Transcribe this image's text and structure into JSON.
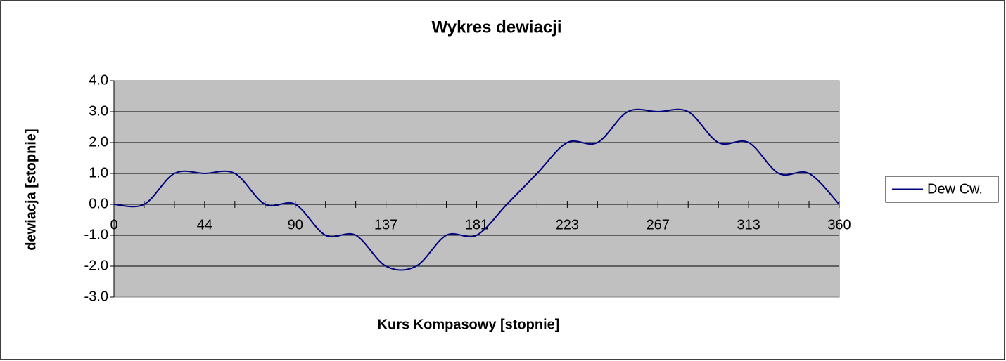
{
  "chart_data": {
    "type": "line",
    "title": "Wykres dewiacji",
    "x_label": "Kurs Kompasowy   [stopnie]",
    "y_label": "dewiacja [stopnie]",
    "categories": [
      0,
      null,
      null,
      44,
      null,
      null,
      90,
      null,
      null,
      137,
      null,
      null,
      181,
      null,
      null,
      223,
      null,
      null,
      267,
      null,
      null,
      313,
      null,
      null,
      360
    ],
    "series": [
      {
        "name": "Dew Cw.",
        "color": "#000080",
        "values": [
          0,
          0,
          1,
          1,
          1,
          0,
          0,
          -1,
          -1,
          -2,
          -2,
          -1,
          -1,
          0,
          1,
          2,
          2,
          3,
          3,
          3,
          2,
          2,
          1,
          1,
          0
        ]
      }
    ],
    "ylim": [
      -3,
      4
    ],
    "yticks": [
      {
        "value": -3,
        "label": "-3.0"
      },
      {
        "value": -2,
        "label": "-2.0"
      },
      {
        "value": -1,
        "label": "-1.0"
      },
      {
        "value": 0,
        "label": "0.0"
      },
      {
        "value": 1,
        "label": "1.0"
      },
      {
        "value": 2,
        "label": "2.0"
      },
      {
        "value": 3,
        "label": "3.0"
      },
      {
        "value": 4,
        "label": "4.0"
      }
    ],
    "grid": true,
    "smooth": true,
    "legend": "right"
  }
}
